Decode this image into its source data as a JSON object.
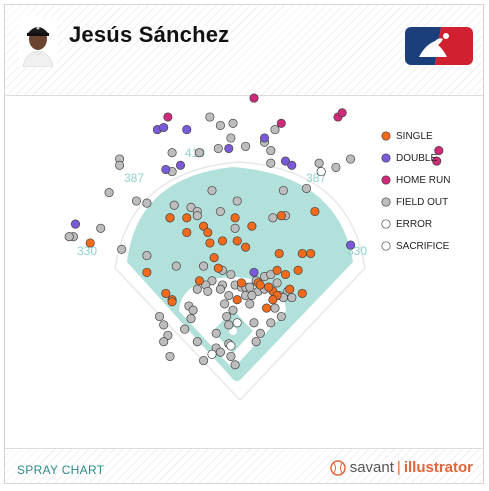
{
  "header": {
    "player_name": "Jesús Sánchez"
  },
  "footer": {
    "label": "SPRAY CHART",
    "brand_savant": "savant",
    "brand_sep": "|",
    "brand_illustrator": "illustrator"
  },
  "colors": {
    "single": "#f26a1b",
    "double": "#7a5ad8",
    "home_run": "#cf2a78",
    "field_out": "#bdbdbd",
    "error": "#ffffff",
    "sacrifice": "#ffffff",
    "field": "#b2e0da"
  },
  "chart_data": {
    "type": "scatter",
    "distance_labels": {
      "left_line": "330",
      "left_center": "387",
      "center": "410",
      "right_center": "387",
      "right_line": "330"
    },
    "legend": [
      "SINGLE",
      "DOUBLE",
      "HOME RUN",
      "FIELD OUT",
      "ERROR",
      "SACRIFICE"
    ],
    "legend_placement": "top-right",
    "series": [
      {
        "name": "SINGLE",
        "points": [
          [
            -0.68,
            0.6
          ],
          [
            -0.22,
            0.65
          ],
          [
            0.02,
            0.61
          ],
          [
            -0.41,
            0.46
          ],
          [
            -0.32,
            0.36
          ],
          [
            -0.29,
            0.33
          ],
          [
            -0.29,
            0.32
          ],
          [
            0.02,
            0.33
          ],
          [
            -0.14,
            0.68
          ],
          [
            0.09,
            0.68
          ],
          [
            -0.12,
            0.65
          ],
          [
            -0.05,
            0.61
          ],
          [
            -0.11,
            0.6
          ],
          [
            0.06,
            0.58
          ],
          [
            -0.09,
            0.53
          ],
          [
            -0.07,
            0.48
          ],
          [
            0.22,
            0.55
          ],
          [
            0.33,
            0.55
          ],
          [
            0.37,
            0.55
          ],
          [
            0.21,
            0.47
          ],
          [
            0.25,
            0.45
          ],
          [
            0.31,
            0.47
          ],
          [
            0.12,
            0.41
          ],
          [
            0.04,
            0.41
          ],
          [
            0.19,
            0.37
          ],
          [
            0.21,
            0.35
          ],
          [
            0.13,
            0.4
          ],
          [
            0.17,
            0.39
          ],
          [
            0.19,
            0.33
          ],
          [
            0.27,
            0.38
          ],
          [
            0.33,
            0.36
          ],
          [
            0.16,
            0.29
          ],
          [
            0.01,
            0.72
          ],
          [
            0.23,
            0.73
          ],
          [
            -0.22,
            0.72
          ],
          [
            -0.3,
            0.72
          ],
          [
            0.39,
            0.75
          ],
          [
            -0.16,
            0.42
          ]
        ]
      },
      {
        "name": "DOUBLE",
        "points": [
          [
            -0.36,
            1.14
          ],
          [
            -0.33,
            1.15
          ],
          [
            -0.25,
            0.97
          ],
          [
            -0.32,
            0.95
          ],
          [
            -0.02,
            1.05
          ],
          [
            0.15,
            1.1
          ],
          [
            -0.22,
            1.14
          ],
          [
            0.25,
            0.99
          ],
          [
            0.28,
            0.97
          ],
          [
            -0.75,
            0.69
          ],
          [
            0.56,
            0.59
          ],
          [
            0.1,
            0.46
          ]
        ]
      },
      {
        "name": "HOME RUN",
        "points": [
          [
            -0.31,
            1.2
          ],
          [
            0.1,
            1.29
          ],
          [
            0.23,
            1.17
          ],
          [
            0.5,
            1.2
          ],
          [
            0.52,
            1.22
          ],
          [
            0.98,
            1.04
          ],
          [
            0.97,
            0.99
          ]
        ]
      },
      {
        "name": "FIELD OUT",
        "points": [
          [
            -0.11,
            1.2
          ],
          [
            0.0,
            1.17
          ],
          [
            -0.06,
            1.16
          ],
          [
            -0.01,
            1.1
          ],
          [
            0.06,
            1.06
          ],
          [
            0.2,
            1.14
          ],
          [
            0.18,
            1.04
          ],
          [
            -0.16,
            1.03
          ],
          [
            -0.07,
            1.05
          ],
          [
            -0.29,
            1.03
          ],
          [
            -0.29,
            0.94
          ],
          [
            0.15,
            1.08
          ],
          [
            0.41,
            0.98
          ],
          [
            0.56,
            1.0
          ],
          [
            0.49,
            0.96
          ],
          [
            0.18,
            0.98
          ],
          [
            -0.54,
            1.0
          ],
          [
            -0.54,
            0.97
          ],
          [
            -0.1,
            0.85
          ],
          [
            0.24,
            0.85
          ],
          [
            0.35,
            0.86
          ],
          [
            0.25,
            0.73
          ],
          [
            0.02,
            0.8
          ],
          [
            -0.59,
            0.84
          ],
          [
            -0.46,
            0.8
          ],
          [
            -0.41,
            0.79
          ],
          [
            -0.28,
            0.78
          ],
          [
            -0.2,
            0.77
          ],
          [
            -0.3,
            0.72
          ],
          [
            -0.06,
            0.75
          ],
          [
            -0.17,
            0.75
          ],
          [
            -0.17,
            0.73
          ],
          [
            0.19,
            0.72
          ],
          [
            0.01,
            0.67
          ],
          [
            -0.63,
            0.67
          ],
          [
            -0.76,
            0.63
          ],
          [
            -0.78,
            0.63
          ],
          [
            -0.53,
            0.57
          ],
          [
            -0.41,
            0.54
          ],
          [
            -0.27,
            0.49
          ],
          [
            -0.14,
            0.49
          ],
          [
            -0.05,
            0.47
          ],
          [
            -0.1,
            0.42
          ],
          [
            -0.13,
            0.4
          ],
          [
            -0.12,
            0.37
          ],
          [
            -0.17,
            0.38
          ],
          [
            -0.05,
            0.4
          ],
          [
            -0.06,
            0.38
          ],
          [
            0.01,
            0.4
          ],
          [
            0.04,
            0.39
          ],
          [
            0.06,
            0.39
          ],
          [
            0.08,
            0.39
          ],
          [
            0.12,
            0.37
          ],
          [
            0.15,
            0.38
          ],
          [
            0.11,
            0.42
          ],
          [
            0.15,
            0.44
          ],
          [
            0.18,
            0.45
          ],
          [
            0.21,
            0.41
          ],
          [
            0.22,
            0.35
          ],
          [
            0.26,
            0.37
          ],
          [
            0.24,
            0.34
          ],
          [
            0.28,
            0.34
          ],
          [
            0.2,
            0.29
          ],
          [
            0.23,
            0.25
          ],
          [
            -0.01,
            0.45
          ],
          [
            -0.02,
            0.35
          ],
          [
            -0.04,
            0.31
          ],
          [
            0.06,
            0.35
          ],
          [
            0.09,
            0.35
          ],
          [
            0.08,
            0.31
          ],
          [
            0.0,
            0.28
          ],
          [
            -0.03,
            0.25
          ],
          [
            -0.02,
            0.21
          ],
          [
            -0.08,
            0.17
          ],
          [
            -0.21,
            0.3
          ],
          [
            -0.19,
            0.28
          ],
          [
            -0.2,
            0.24
          ],
          [
            -0.23,
            0.19
          ],
          [
            -0.33,
            0.21
          ],
          [
            -0.31,
            0.16
          ],
          [
            -0.17,
            0.13
          ],
          [
            -0.08,
            0.1
          ],
          [
            0.11,
            0.13
          ],
          [
            0.13,
            0.17
          ],
          [
            0.1,
            0.22
          ],
          [
            0.18,
            0.22
          ],
          [
            -0.02,
            0.12
          ],
          [
            -0.33,
            0.13
          ],
          [
            -0.35,
            0.25
          ],
          [
            -0.3,
            0.06
          ],
          [
            -0.14,
            0.04
          ],
          [
            -0.01,
            0.06
          ],
          [
            0.01,
            0.02
          ],
          [
            -0.06,
            0.08
          ]
        ]
      },
      {
        "name": "ERROR",
        "points": [
          [
            0.42,
            0.94
          ]
        ]
      },
      {
        "name": "SACRIFICE",
        "points": [
          [
            -0.1,
            0.07
          ],
          [
            0.02,
            0.22
          ],
          [
            -0.01,
            0.11
          ]
        ]
      }
    ]
  }
}
